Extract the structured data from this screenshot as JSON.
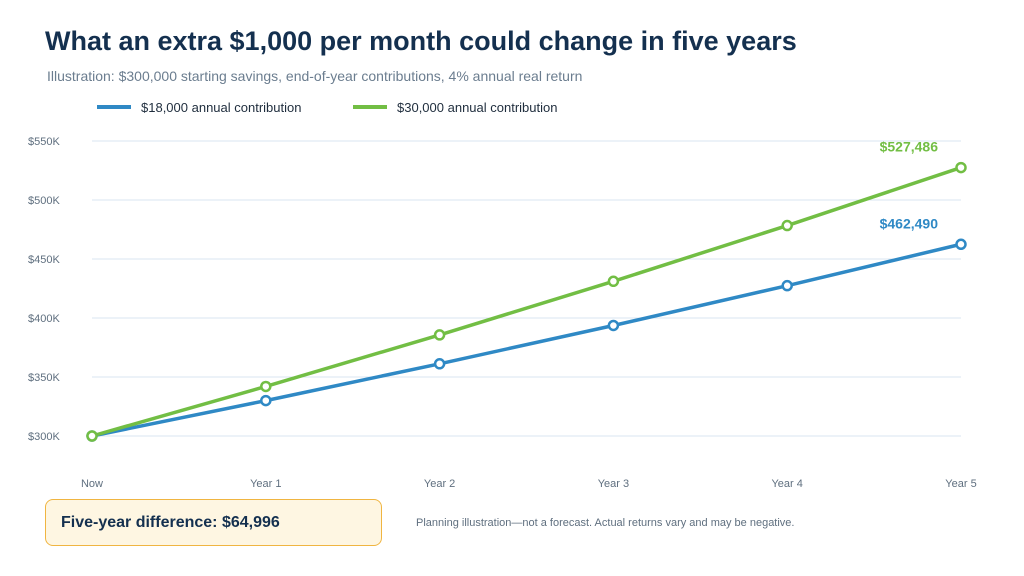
{
  "title": "What an extra $1,000 per month could change in five years",
  "subtitle": "Illustration: $300,000 starting savings, end-of-year contributions, 4% annual real return",
  "colors": {
    "series_blue": "#2f89c5",
    "series_green": "#72be44",
    "grid": "#d9e5f1",
    "tick_text": "#5f6f7f",
    "callout_bg": "#fef6e2",
    "callout_border": "#f0b541"
  },
  "callout": {
    "text": "Five-year difference: $64,996"
  },
  "footnote": "Planning illustration—not a forecast. Actual returns vary and may be negative.",
  "chart_data": {
    "type": "line",
    "categories": [
      "Now",
      "Year 1",
      "Year 2",
      "Year 3",
      "Year 4",
      "Year 5"
    ],
    "series": [
      {
        "name": "$18,000 annual contribution",
        "color": "#2f89c5",
        "values": [
          300000,
          330000,
          361200,
          393648,
          427394,
          462490
        ],
        "end_label": "$462,490"
      },
      {
        "name": "$30,000 annual contribution",
        "color": "#72be44",
        "values": [
          300000,
          342000,
          385680,
          431107,
          478351,
          527486
        ],
        "end_label": "$527,486"
      }
    ],
    "yticks": [
      {
        "value": 300000,
        "label": "$300K"
      },
      {
        "value": 350000,
        "label": "$350K"
      },
      {
        "value": 400000,
        "label": "$400K"
      },
      {
        "value": 450000,
        "label": "$450K"
      },
      {
        "value": 500000,
        "label": "$500K"
      },
      {
        "value": 550000,
        "label": "$550K"
      }
    ],
    "ylim": [
      300000,
      550000
    ],
    "grid": true,
    "legend": "top-left",
    "xlabel": "",
    "ylabel": ""
  }
}
